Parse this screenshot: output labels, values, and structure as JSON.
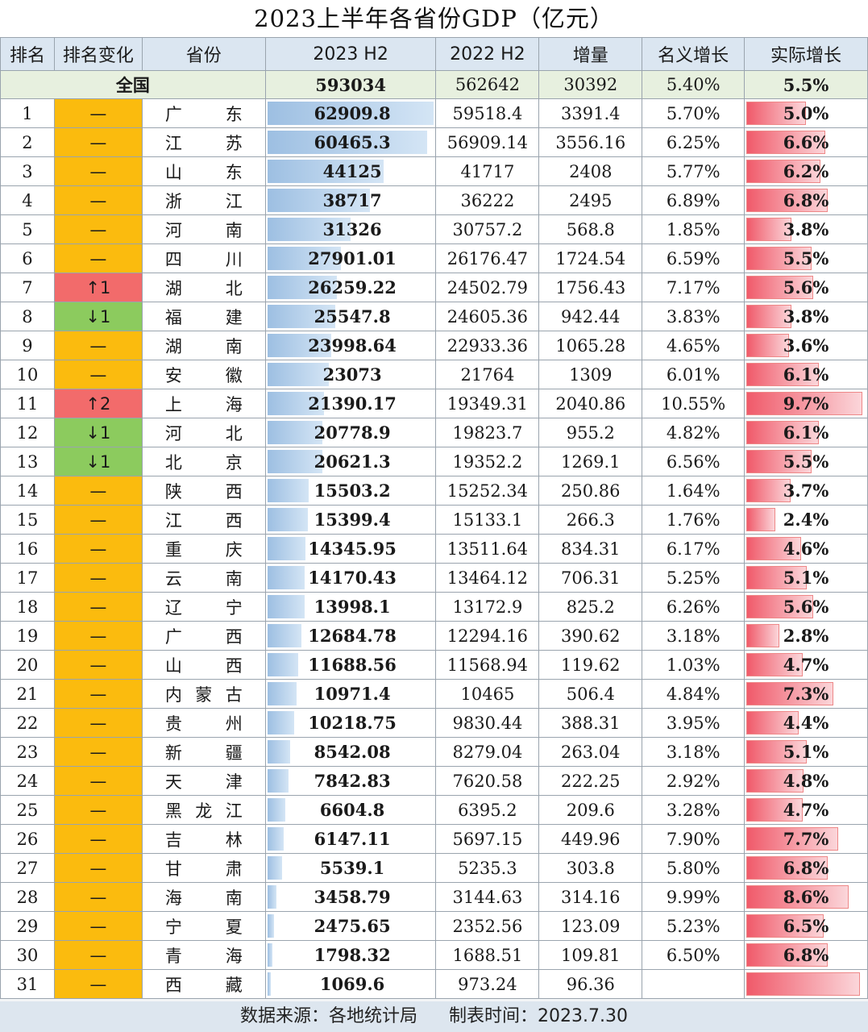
{
  "title": "2023上半年各省份GDP（亿元）",
  "headers": [
    "排名",
    "排名变化",
    "省份",
    "2023 H2",
    "2022 H2",
    "增量",
    "名义增长",
    "实际增长"
  ],
  "national": {
    "label": "全国",
    "gdp2023": "593034",
    "gdp2022": "562642",
    "increase": "30392",
    "nominal": "5.40%",
    "real": "5.5%"
  },
  "rows": [
    {
      "rank": "1",
      "change": "—",
      "change_type": "same",
      "province": "广东",
      "gdp2023": "62909.8",
      "gdp2022": "59518.4",
      "increase": "3391.4",
      "nominal": "5.70%",
      "real": "5.0%",
      "gdp_value": 62909.8,
      "real_value": 5.0
    },
    {
      "rank": "2",
      "change": "—",
      "change_type": "same",
      "province": "江苏",
      "gdp2023": "60465.3",
      "gdp2022": "56909.14",
      "increase": "3556.16",
      "nominal": "6.25%",
      "real": "6.6%",
      "gdp_value": 60465.3,
      "real_value": 6.6
    },
    {
      "rank": "3",
      "change": "—",
      "change_type": "same",
      "province": "山东",
      "gdp2023": "44125",
      "gdp2022": "41717",
      "increase": "2408",
      "nominal": "5.77%",
      "real": "6.2%",
      "gdp_value": 44125,
      "real_value": 6.2
    },
    {
      "rank": "4",
      "change": "—",
      "change_type": "same",
      "province": "浙江",
      "gdp2023": "38717",
      "gdp2022": "36222",
      "increase": "2495",
      "nominal": "6.89%",
      "real": "6.8%",
      "gdp_value": 38717,
      "real_value": 6.8
    },
    {
      "rank": "5",
      "change": "—",
      "change_type": "same",
      "province": "河南",
      "gdp2023": "31326",
      "gdp2022": "30757.2",
      "increase": "568.8",
      "nominal": "1.85%",
      "real": "3.8%",
      "gdp_value": 31326,
      "real_value": 3.8
    },
    {
      "rank": "6",
      "change": "—",
      "change_type": "same",
      "province": "四川",
      "gdp2023": "27901.01",
      "gdp2022": "26176.47",
      "increase": "1724.54",
      "nominal": "6.59%",
      "real": "5.5%",
      "gdp_value": 27901.01,
      "real_value": 5.5
    },
    {
      "rank": "7",
      "change": "↑1",
      "change_type": "up",
      "province": "湖北",
      "gdp2023": "26259.22",
      "gdp2022": "24502.79",
      "increase": "1756.43",
      "nominal": "7.17%",
      "real": "5.6%",
      "gdp_value": 26259.22,
      "real_value": 5.6
    },
    {
      "rank": "8",
      "change": "↓1",
      "change_type": "down",
      "province": "福建",
      "gdp2023": "25547.8",
      "gdp2022": "24605.36",
      "increase": "942.44",
      "nominal": "3.83%",
      "real": "3.8%",
      "gdp_value": 25547.8,
      "real_value": 3.8
    },
    {
      "rank": "9",
      "change": "—",
      "change_type": "same",
      "province": "湖南",
      "gdp2023": "23998.64",
      "gdp2022": "22933.36",
      "increase": "1065.28",
      "nominal": "4.65%",
      "real": "3.6%",
      "gdp_value": 23998.64,
      "real_value": 3.6
    },
    {
      "rank": "10",
      "change": "—",
      "change_type": "same",
      "province": "安徽",
      "gdp2023": "23073",
      "gdp2022": "21764",
      "increase": "1309",
      "nominal": "6.01%",
      "real": "6.1%",
      "gdp_value": 23073,
      "real_value": 6.1
    },
    {
      "rank": "11",
      "change": "↑2",
      "change_type": "up",
      "province": "上海",
      "gdp2023": "21390.17",
      "gdp2022": "19349.31",
      "increase": "2040.86",
      "nominal": "10.55%",
      "real": "9.7%",
      "gdp_value": 21390.17,
      "real_value": 9.7
    },
    {
      "rank": "12",
      "change": "↓1",
      "change_type": "down",
      "province": "河北",
      "gdp2023": "20778.9",
      "gdp2022": "19823.7",
      "increase": "955.2",
      "nominal": "4.82%",
      "real": "6.1%",
      "gdp_value": 20778.9,
      "real_value": 6.1
    },
    {
      "rank": "13",
      "change": "↓1",
      "change_type": "down",
      "province": "北京",
      "gdp2023": "20621.3",
      "gdp2022": "19352.2",
      "increase": "1269.1",
      "nominal": "6.56%",
      "real": "5.5%",
      "gdp_value": 20621.3,
      "real_value": 5.5
    },
    {
      "rank": "14",
      "change": "—",
      "change_type": "same",
      "province": "陕西",
      "gdp2023": "15503.2",
      "gdp2022": "15252.34",
      "increase": "250.86",
      "nominal": "1.64%",
      "real": "3.7%",
      "gdp_value": 15503.2,
      "real_value": 3.7
    },
    {
      "rank": "15",
      "change": "—",
      "change_type": "same",
      "province": "江西",
      "gdp2023": "15399.4",
      "gdp2022": "15133.1",
      "increase": "266.3",
      "nominal": "1.76%",
      "real": "2.4%",
      "gdp_value": 15399.4,
      "real_value": 2.4
    },
    {
      "rank": "16",
      "change": "—",
      "change_type": "same",
      "province": "重庆",
      "gdp2023": "14345.95",
      "gdp2022": "13511.64",
      "increase": "834.31",
      "nominal": "6.17%",
      "real": "4.6%",
      "gdp_value": 14345.95,
      "real_value": 4.6
    },
    {
      "rank": "17",
      "change": "—",
      "change_type": "same",
      "province": "云南",
      "gdp2023": "14170.43",
      "gdp2022": "13464.12",
      "increase": "706.31",
      "nominal": "5.25%",
      "real": "5.1%",
      "gdp_value": 14170.43,
      "real_value": 5.1
    },
    {
      "rank": "18",
      "change": "—",
      "change_type": "same",
      "province": "辽宁",
      "gdp2023": "13998.1",
      "gdp2022": "13172.9",
      "increase": "825.2",
      "nominal": "6.26%",
      "real": "5.6%",
      "gdp_value": 13998.1,
      "real_value": 5.6
    },
    {
      "rank": "19",
      "change": "—",
      "change_type": "same",
      "province": "广西",
      "gdp2023": "12684.78",
      "gdp2022": "12294.16",
      "increase": "390.62",
      "nominal": "3.18%",
      "real": "2.8%",
      "gdp_value": 12684.78,
      "real_value": 2.8
    },
    {
      "rank": "20",
      "change": "—",
      "change_type": "same",
      "province": "山西",
      "gdp2023": "11688.56",
      "gdp2022": "11568.94",
      "increase": "119.62",
      "nominal": "1.03%",
      "real": "4.7%",
      "gdp_value": 11688.56,
      "real_value": 4.7
    },
    {
      "rank": "21",
      "change": "—",
      "change_type": "same",
      "province": "内蒙古",
      "gdp2023": "10971.4",
      "gdp2022": "10465",
      "increase": "506.4",
      "nominal": "4.84%",
      "real": "7.3%",
      "gdp_value": 10971.4,
      "real_value": 7.3
    },
    {
      "rank": "22",
      "change": "—",
      "change_type": "same",
      "province": "贵州",
      "gdp2023": "10218.75",
      "gdp2022": "9830.44",
      "increase": "388.31",
      "nominal": "3.95%",
      "real": "4.4%",
      "gdp_value": 10218.75,
      "real_value": 4.4
    },
    {
      "rank": "23",
      "change": "—",
      "change_type": "same",
      "province": "新疆",
      "gdp2023": "8542.08",
      "gdp2022": "8279.04",
      "increase": "263.04",
      "nominal": "3.18%",
      "real": "5.1%",
      "gdp_value": 8542.08,
      "real_value": 5.1
    },
    {
      "rank": "24",
      "change": "—",
      "change_type": "same",
      "province": "天津",
      "gdp2023": "7842.83",
      "gdp2022": "7620.58",
      "increase": "222.25",
      "nominal": "2.92%",
      "real": "4.8%",
      "gdp_value": 7842.83,
      "real_value": 4.8
    },
    {
      "rank": "25",
      "change": "—",
      "change_type": "same",
      "province": "黑龙江",
      "gdp2023": "6604.8",
      "gdp2022": "6395.2",
      "increase": "209.6",
      "nominal": "3.28%",
      "real": "4.7%",
      "gdp_value": 6604.8,
      "real_value": 4.7
    },
    {
      "rank": "26",
      "change": "—",
      "change_type": "same",
      "province": "吉林",
      "gdp2023": "6147.11",
      "gdp2022": "5697.15",
      "increase": "449.96",
      "nominal": "7.90%",
      "real": "7.7%",
      "gdp_value": 6147.11,
      "real_value": 7.7
    },
    {
      "rank": "27",
      "change": "—",
      "change_type": "same",
      "province": "甘肃",
      "gdp2023": "5539.1",
      "gdp2022": "5235.3",
      "increase": "303.8",
      "nominal": "5.80%",
      "real": "6.8%",
      "gdp_value": 5539.1,
      "real_value": 6.8
    },
    {
      "rank": "28",
      "change": "—",
      "change_type": "same",
      "province": "海南",
      "gdp2023": "3458.79",
      "gdp2022": "3144.63",
      "increase": "314.16",
      "nominal": "9.99%",
      "real": "8.6%",
      "gdp_value": 3458.79,
      "real_value": 8.6
    },
    {
      "rank": "29",
      "change": "—",
      "change_type": "same",
      "province": "宁夏",
      "gdp2023": "2475.65",
      "gdp2022": "2352.56",
      "increase": "123.09",
      "nominal": "5.23%",
      "real": "6.5%",
      "gdp_value": 2475.65,
      "real_value": 6.5
    },
    {
      "rank": "30",
      "change": "—",
      "change_type": "same",
      "province": "青海",
      "gdp2023": "1798.32",
      "gdp2022": "1688.51",
      "increase": "109.81",
      "nominal": "6.50%",
      "real": "6.8%",
      "gdp_value": 1798.32,
      "real_value": 6.8
    },
    {
      "rank": "31",
      "change": "—",
      "change_type": "same",
      "province": "西藏",
      "gdp2023": "1069.6",
      "gdp2022": "973.24",
      "increase": "96.36",
      "nominal": "",
      "real": "",
      "gdp_value": 1069.6,
      "real_value": 9.5
    }
  ],
  "footer": {
    "source": "数据来源：各地统计局",
    "time": "制表时间：2023.7.30"
  },
  "colors": {
    "same": "#fbbb0e",
    "up": "#f26b6b",
    "down": "#8ccb5e",
    "header_bg": "#dbe6f1",
    "national_bg": "#e7f0df"
  }
}
